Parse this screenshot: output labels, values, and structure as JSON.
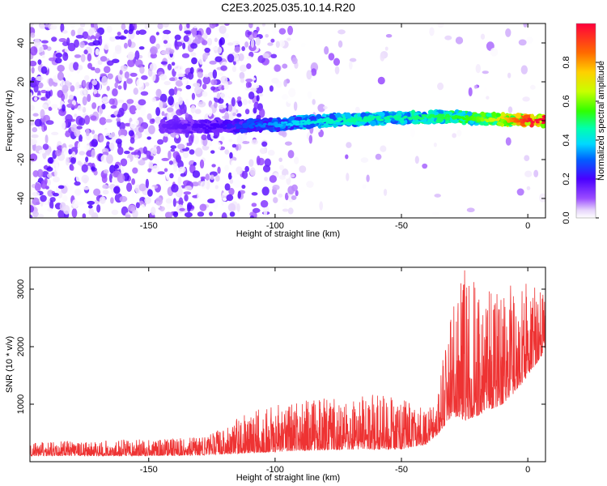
{
  "title": "C2E3.2025.035.10.14.R20",
  "chart_data": [
    {
      "type": "heatmap",
      "xlabel": "Height of straight line (km)",
      "ylabel": "Frequency (Hz)",
      "xlim": [
        -197,
        7
      ],
      "ylim": [
        -50,
        50
      ],
      "x_ticks": [
        -150,
        -100,
        -50,
        0
      ],
      "y_ticks": [
        -40,
        -20,
        0,
        20,
        40
      ],
      "colorbar": {
        "label": "Normalized spectral amplitude",
        "range": [
          0,
          1
        ],
        "ticks": [
          0.0,
          0.2,
          0.4,
          0.6,
          0.8
        ]
      },
      "ridge": {
        "x": [
          -145,
          -130,
          -120,
          -110,
          -100,
          -90,
          -80,
          -70,
          -60,
          -50,
          -40,
          -30,
          -20,
          -10,
          0,
          7
        ],
        "frequency": [
          -3,
          -3,
          -3,
          -2.5,
          -2,
          -1,
          0,
          0.5,
          1,
          1.5,
          2,
          2,
          1,
          0.5,
          0,
          0
        ],
        "amplitude": [
          0.15,
          0.18,
          0.2,
          0.28,
          0.33,
          0.38,
          0.42,
          0.45,
          0.45,
          0.45,
          0.48,
          0.5,
          0.55,
          0.7,
          0.92,
          0.95
        ]
      },
      "noise": {
        "dense_x_range": [
          -197,
          -120
        ],
        "sparse_x_range": [
          -120,
          7
        ],
        "amplitude_range": [
          0.0,
          0.2
        ]
      }
    },
    {
      "type": "line",
      "xlabel": "Height of straight line (km)",
      "ylabel": "SNR (10 * v/v)",
      "xlim": [
        -197,
        7
      ],
      "ylim": [
        0,
        3380
      ],
      "x_ticks": [
        -150,
        -100,
        -50,
        0
      ],
      "y_ticks": [
        1000,
        2000,
        3000
      ],
      "color": "#ee3333",
      "envelope": {
        "x": [
          -197,
          -160,
          -130,
          -120,
          -110,
          -100,
          -90,
          -80,
          -70,
          -60,
          -50,
          -40,
          -35,
          -30,
          -25,
          -20,
          -15,
          -10,
          -5,
          0,
          5,
          7
        ],
        "base": [
          100,
          100,
          110,
          130,
          150,
          170,
          190,
          200,
          210,
          210,
          220,
          300,
          500,
          800,
          700,
          800,
          900,
          1000,
          1200,
          1500,
          1800,
          2000
        ],
        "peak": [
          350,
          380,
          420,
          600,
          900,
          1000,
          1050,
          1100,
          1100,
          1200,
          1100,
          900,
          1400,
          2800,
          3380,
          3100,
          3000,
          3050,
          3100,
          3150,
          3050,
          2900
        ]
      }
    }
  ]
}
